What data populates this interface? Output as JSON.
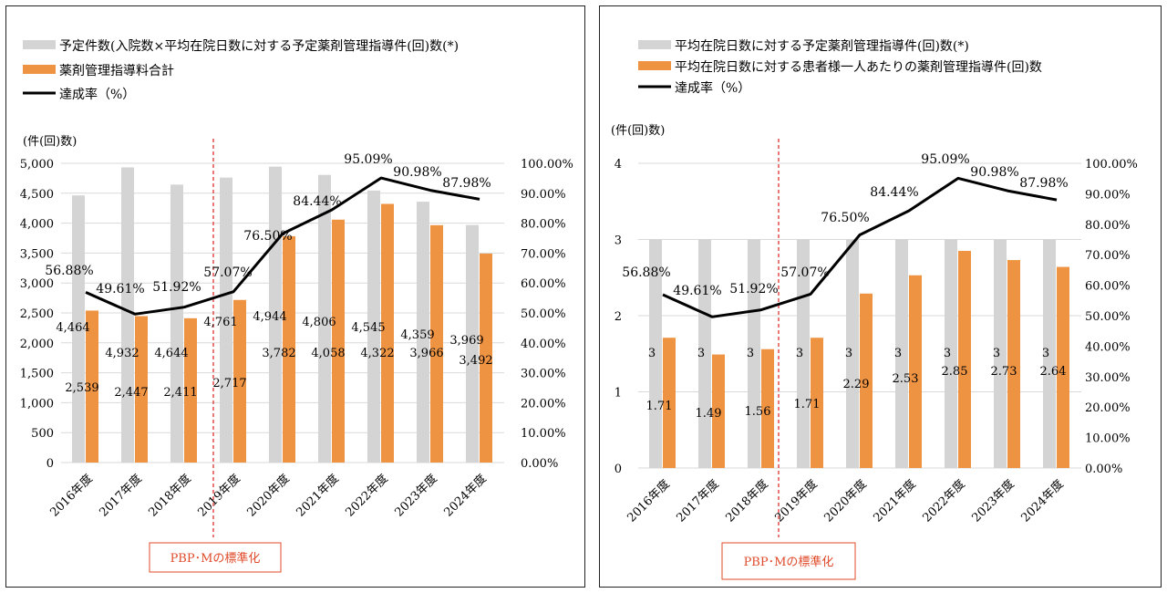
{
  "colors": {
    "bar_gray": "#d4d4d4",
    "bar_orange": "#ee9342",
    "line": "#000000",
    "divider": "#e02020",
    "note": "#e04a2a"
  },
  "chart_data": [
    {
      "type": "bar",
      "categories": [
        "2016年度",
        "2017年度",
        "2018年度",
        "2019年度",
        "2020年度",
        "2021年度",
        "2022年度",
        "2023年度",
        "2024年度"
      ],
      "ylabel": "(件(回)数)",
      "ylim": [
        0,
        5000
      ],
      "yticks": [
        "0",
        "500",
        "1,000",
        "1,500",
        "2,000",
        "2,500",
        "3,000",
        "3,500",
        "4,000",
        "4,500",
        "5,000"
      ],
      "y2lim": [
        0,
        100
      ],
      "y2ticks": [
        "0.00%",
        "10.00%",
        "20.00%",
        "30.00%",
        "40.00%",
        "50.00%",
        "60.00%",
        "70.00%",
        "80.00%",
        "90.00%",
        "100.00%"
      ],
      "legend_position": "top-left",
      "series": [
        {
          "name": "予定件数(入院数×平均在院日数に対する予定薬剤管理指導件(回)数(*)",
          "kind": "bar",
          "values": [
            4464,
            4932,
            4644,
            4761,
            4944,
            4806,
            4545,
            4359,
            3969
          ],
          "labels": [
            "4,464",
            "4,932",
            "4,644",
            "4,761",
            "4,944",
            "4,806",
            "4,545",
            "4,359",
            "3,969"
          ]
        },
        {
          "name": "薬剤管理指導料合計",
          "kind": "bar",
          "values": [
            2539,
            2447,
            2411,
            2717,
            3782,
            4058,
            4322,
            3966,
            3492
          ],
          "labels": [
            "2,539",
            "2,447",
            "2,411",
            "2,717",
            "3,782",
            "4,058",
            "4,322",
            "3,966",
            "3,492"
          ]
        },
        {
          "name": "達成率（%）",
          "kind": "line",
          "axis": "right",
          "values": [
            56.88,
            49.61,
            51.92,
            57.07,
            76.5,
            84.44,
            95.09,
            90.98,
            87.98
          ],
          "labels": [
            "56.88%",
            "49.61%",
            "51.92%",
            "57.07%",
            "76.50%",
            "84.44%",
            "95.09%",
            "90.98%",
            "87.98%"
          ]
        }
      ],
      "annotation": "PBP･Mの標準化"
    },
    {
      "type": "bar",
      "categories": [
        "2016年度",
        "2017年度",
        "2018年度",
        "2019年度",
        "2020年度",
        "2021年度",
        "2022年度",
        "2023年度",
        "2024年度"
      ],
      "ylabel": "(件(回)数)",
      "ylim": [
        0,
        4
      ],
      "yticks": [
        "0",
        "1",
        "2",
        "3",
        "4"
      ],
      "y2lim": [
        0,
        100
      ],
      "y2ticks": [
        "0.00%",
        "10.00%",
        "20.00%",
        "30.00%",
        "40.00%",
        "50.00%",
        "60.00%",
        "70.00%",
        "80.00%",
        "90.00%",
        "100.00%"
      ],
      "legend_position": "top-left",
      "series": [
        {
          "name": "平均在院日数に対する予定薬剤管理指導件(回)数(*)",
          "kind": "bar",
          "values": [
            3,
            3,
            3,
            3,
            3,
            3,
            3,
            3,
            3
          ],
          "labels": [
            "3",
            "3",
            "3",
            "3",
            "3",
            "3",
            "3",
            "3",
            "3"
          ]
        },
        {
          "name": "平均在院日数に対する患者様一人あたりの薬剤管理指導件(回)数",
          "kind": "bar",
          "values": [
            1.71,
            1.49,
            1.56,
            1.71,
            2.29,
            2.53,
            2.85,
            2.73,
            2.64
          ],
          "labels": [
            "1.71",
            "1.49",
            "1.56",
            "1.71",
            "2.29",
            "2.53",
            "2.85",
            "2.73",
            "2.64"
          ]
        },
        {
          "name": "達成率（%）",
          "kind": "line",
          "axis": "right",
          "values": [
            56.88,
            49.61,
            51.92,
            57.07,
            76.5,
            84.44,
            95.09,
            90.98,
            87.98
          ],
          "labels": [
            "56.88%",
            "49.61%",
            "51.92%",
            "57.07%",
            "76.50%",
            "84.44%",
            "95.09%",
            "90.98%",
            "87.98%"
          ]
        }
      ],
      "annotation": "PBP･Mの標準化"
    }
  ]
}
